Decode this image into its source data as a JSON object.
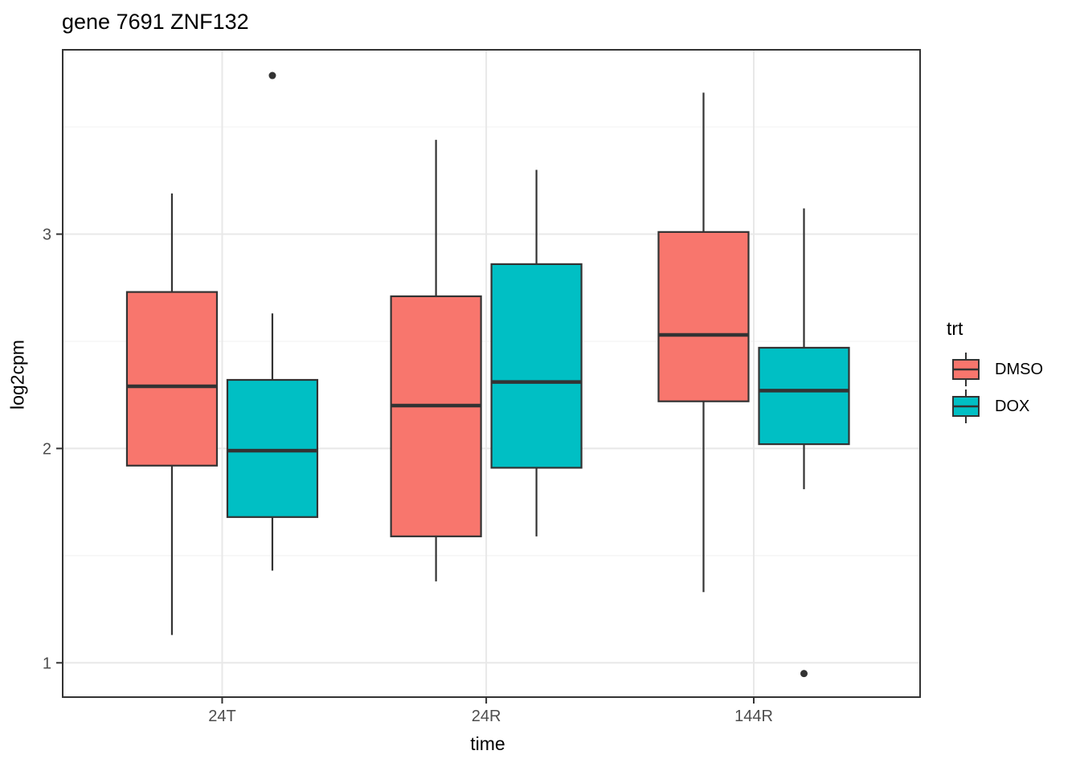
{
  "title": "gene 7691 ZNF132",
  "chart_data": {
    "type": "boxplot",
    "title": "gene 7691 ZNF132",
    "xlabel": "time",
    "ylabel": "log2cpm",
    "categories": [
      "24T",
      "24R",
      "144R"
    ],
    "yticks": [
      1,
      2,
      3
    ],
    "ylim": [
      0.84,
      3.86
    ],
    "grid": "major and minor horizontal, major vertical at categories",
    "legend": {
      "title": "trt",
      "position": "right",
      "entries": [
        {
          "label": "DMSO",
          "color": "#F8766D"
        },
        {
          "label": "DOX",
          "color": "#00BFC4"
        }
      ]
    },
    "series": [
      {
        "name": "DMSO",
        "color": "#F8766D",
        "boxes": [
          {
            "category": "24T",
            "whisker_low": 1.13,
            "q1": 1.92,
            "median": 2.29,
            "q3": 2.73,
            "whisker_high": 3.19,
            "outliers": []
          },
          {
            "category": "24R",
            "whisker_low": 1.38,
            "q1": 1.59,
            "median": 2.2,
            "q3": 2.71,
            "whisker_high": 3.44,
            "outliers": []
          },
          {
            "category": "144R",
            "whisker_low": 1.33,
            "q1": 2.22,
            "median": 2.53,
            "q3": 3.01,
            "whisker_high": 3.66,
            "outliers": []
          }
        ]
      },
      {
        "name": "DOX",
        "color": "#00BFC4",
        "boxes": [
          {
            "category": "24T",
            "whisker_low": 1.43,
            "q1": 1.68,
            "median": 1.99,
            "q3": 2.32,
            "whisker_high": 2.63,
            "outliers": [
              3.74
            ]
          },
          {
            "category": "24R",
            "whisker_low": 1.59,
            "q1": 1.91,
            "median": 2.31,
            "q3": 2.86,
            "whisker_high": 3.3,
            "outliers": []
          },
          {
            "category": "144R",
            "whisker_low": 1.81,
            "q1": 2.02,
            "median": 2.27,
            "q3": 2.47,
            "whisker_high": 3.12,
            "outliers": [
              0.95
            ]
          }
        ]
      }
    ],
    "style": {
      "box_stroke": "#333333",
      "outlier_color": "#333333",
      "grid_major": "#E8E8E8",
      "grid_minor": "#F3F3F3",
      "panel_border": "#333333",
      "tick_color": "#333333",
      "tick_label_color": "#4D4D4D",
      "background": "#FFFFFF"
    }
  }
}
